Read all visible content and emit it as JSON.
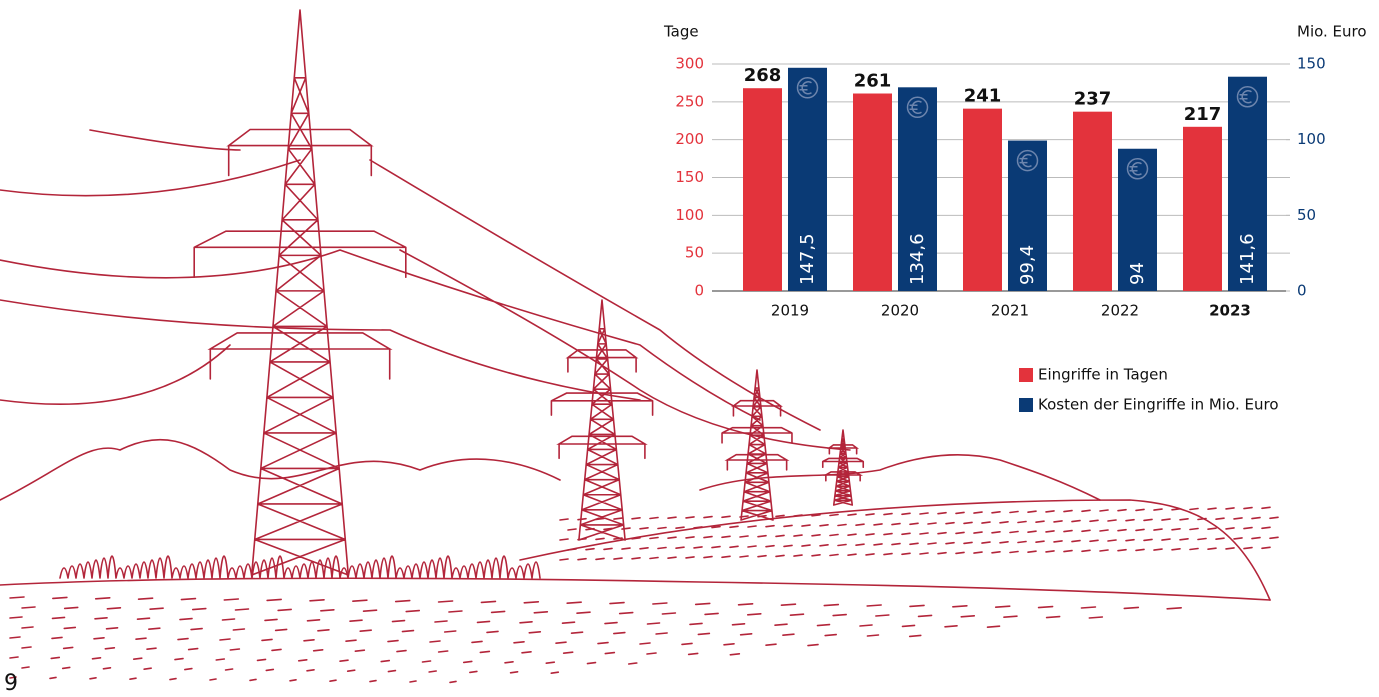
{
  "chart_data": {
    "type": "bar",
    "categories": [
      "2019",
      "2020",
      "2021",
      "2022",
      "2023"
    ],
    "series": [
      {
        "name": "Eingriffe in Tagen",
        "color": "#e3333c",
        "values": [
          268,
          261,
          241,
          237,
          217
        ]
      },
      {
        "name": "Kosten der Eingriffe in Mio. Euro",
        "color": "#0a3a75",
        "axis": "y2",
        "values": [
          147.5,
          134.6,
          99.4,
          94,
          141.6
        ],
        "value_labels": [
          "147,5",
          "134,6",
          "99,4",
          "94",
          "141,6"
        ]
      }
    ],
    "y_label": "Tage",
    "y2_label": "Mio. Euro",
    "ylim": [
      0,
      300
    ],
    "yticks": [
      0,
      50,
      100,
      150,
      200,
      250,
      300
    ],
    "y2lim": [
      0,
      150
    ],
    "y2ticks": [
      0,
      50,
      100,
      150
    ],
    "grid": true,
    "legend_position": "bottom-right"
  },
  "page_number": "9"
}
